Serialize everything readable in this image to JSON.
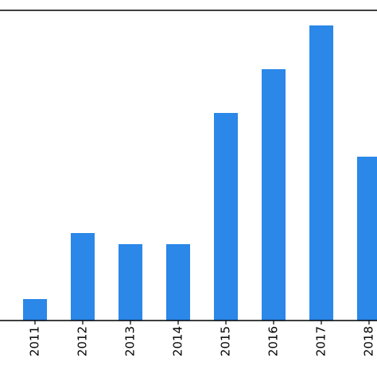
{
  "chart_data": {
    "type": "bar",
    "categories": [
      "2011",
      "2012",
      "2013",
      "2014",
      "2015",
      "2016",
      "2017",
      "2018"
    ],
    "values": [
      2.7,
      11,
      9.6,
      9.6,
      26.1,
      31.6,
      37.1,
      20.6
    ],
    "color": "#2b87e8",
    "ylim": [
      0,
      39
    ]
  }
}
